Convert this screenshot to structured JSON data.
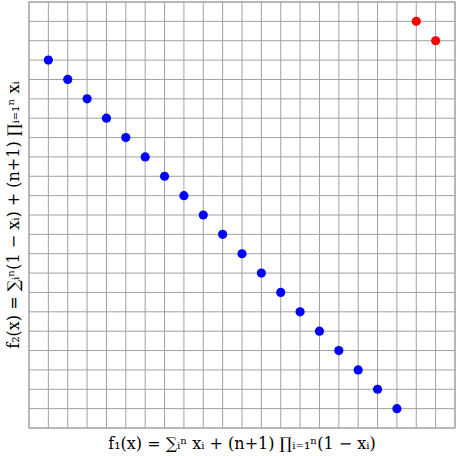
{
  "chart_data": {
    "type": "scatter",
    "x_label": "f₁(x) = ∑ᵢⁿ xᵢ + (n+1) ∏ᵢ₌₁ⁿ(1 − xᵢ)",
    "y_label": "f₂(x) = ∑ᵢⁿ(1 − xᵢ) + (n+1) ∏ᵢ₌₁ⁿ xᵢ",
    "series": [
      {
        "color": "#0000ff",
        "marker": "circle",
        "x": [
          1,
          2,
          3,
          4,
          5,
          6,
          7,
          8,
          9,
          10,
          11,
          12,
          13,
          14,
          15,
          16,
          17,
          18,
          19
        ],
        "values": [
          19,
          18,
          17,
          16,
          15,
          14,
          13,
          12,
          11,
          10,
          9,
          8,
          7,
          6,
          5,
          4,
          3,
          2,
          1
        ]
      },
      {
        "color": "#ff0000",
        "marker": "circle",
        "x": [
          20,
          21
        ],
        "values": [
          21,
          20
        ]
      }
    ],
    "xlim": [
      0,
      22
    ],
    "ylim": [
      0,
      22
    ],
    "xticks": [
      0,
      1,
      2,
      3,
      4,
      5,
      6,
      7,
      8,
      9,
      10,
      11,
      12,
      13,
      14,
      15,
      16,
      17,
      18,
      19,
      20,
      21,
      22
    ],
    "yticks": [
      0,
      1,
      2,
      3,
      4,
      5,
      6,
      7,
      8,
      9,
      10,
      11,
      12,
      13,
      14,
      15,
      16,
      17,
      18,
      19,
      20,
      21,
      22
    ],
    "grid": true,
    "tick_labels": false
  }
}
